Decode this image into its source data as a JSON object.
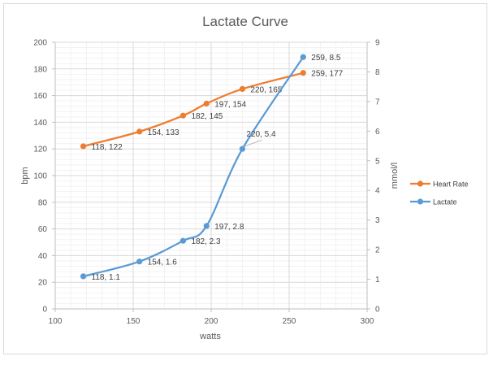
{
  "chart_data": {
    "type": "line",
    "title": "Lactate Curve",
    "xlabel": "watts",
    "ylabel_left": "bpm",
    "ylabel_right": "mmol/l",
    "xlim": [
      100,
      300
    ],
    "x_ticks": [
      100,
      150,
      200,
      250,
      300
    ],
    "ylim_left": [
      0,
      200
    ],
    "y_ticks_left": [
      0,
      20,
      40,
      60,
      80,
      100,
      120,
      140,
      160,
      180,
      200
    ],
    "ylim_right": [
      0,
      9
    ],
    "y_ticks_right": [
      0,
      1,
      2,
      3,
      4,
      5,
      6,
      7,
      8,
      9
    ],
    "grid": true,
    "legend_position": "right",
    "series": [
      {
        "name": "Heart Rate",
        "axis": "left",
        "color": "#ed7d31",
        "x": [
          118,
          154,
          182,
          197,
          220,
          259
        ],
        "y": [
          122,
          133,
          145,
          154,
          165,
          177
        ],
        "labels": [
          "118, 122",
          "154, 133",
          "182, 145",
          "197, 154",
          "220, 165",
          "259, 177"
        ]
      },
      {
        "name": "Lactate",
        "axis": "right",
        "color": "#5b9bd5",
        "x": [
          118,
          154,
          182,
          197,
          220,
          259
        ],
        "y": [
          1.1,
          1.6,
          2.3,
          2.8,
          5.4,
          8.5
        ],
        "labels": [
          "118, 1.1",
          "154, 1.6",
          "182, 2.3",
          "197, 2.8",
          "220, 5.4",
          "259, 8.5"
        ]
      }
    ]
  }
}
